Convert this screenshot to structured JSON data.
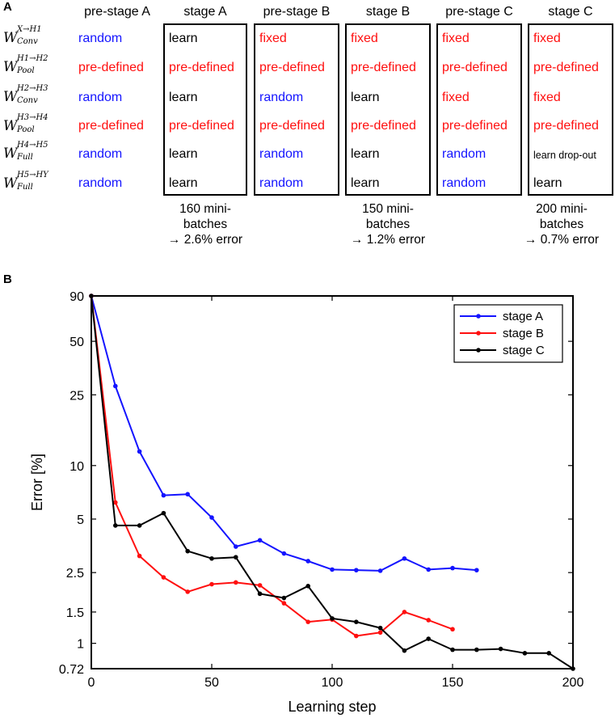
{
  "panel_a": {
    "letter": "A",
    "rows": [
      {
        "base": "W",
        "sup": "X→H1",
        "sub": "Conv"
      },
      {
        "base": "W",
        "sup": "H1→H2",
        "sub": "Pool"
      },
      {
        "base": "W",
        "sup": "H2→H3",
        "sub": "Conv"
      },
      {
        "base": "W",
        "sup": "H3→H4",
        "sub": "Pool"
      },
      {
        "base": "W",
        "sup": "H4→H5",
        "sub": "Full"
      },
      {
        "base": "W",
        "sup": "H5→HY",
        "sub": "Full"
      }
    ],
    "columns": [
      {
        "header": "pre-stage A",
        "cells": [
          "random",
          "pre-defined",
          "random",
          "pre-defined",
          "random",
          "random"
        ],
        "colors": [
          "#1414ff",
          "#ff0f0f",
          "#1414ff",
          "#ff0f0f",
          "#1414ff",
          "#1414ff"
        ]
      },
      {
        "header": "stage A",
        "cells": [
          "learn",
          "pre-defined",
          "learn",
          "pre-defined",
          "learn",
          "learn"
        ],
        "colors": [
          "#000000",
          "#ff0f0f",
          "#000000",
          "#ff0f0f",
          "#000000",
          "#000000"
        ]
      },
      {
        "header": "pre-stage B",
        "cells": [
          "fixed",
          "pre-defined",
          "random",
          "pre-defined",
          "random",
          "random"
        ],
        "colors": [
          "#ff0f0f",
          "#ff0f0f",
          "#1414ff",
          "#ff0f0f",
          "#1414ff",
          "#1414ff"
        ]
      },
      {
        "header": "stage B",
        "cells": [
          "fixed",
          "pre-defined",
          "learn",
          "pre-defined",
          "learn",
          "learn"
        ],
        "colors": [
          "#ff0f0f",
          "#ff0f0f",
          "#000000",
          "#ff0f0f",
          "#000000",
          "#000000"
        ]
      },
      {
        "header": "pre-stage C",
        "cells": [
          "fixed",
          "pre-defined",
          "fixed",
          "pre-defined",
          "random",
          "random"
        ],
        "colors": [
          "#ff0f0f",
          "#ff0f0f",
          "#ff0f0f",
          "#ff0f0f",
          "#1414ff",
          "#1414ff"
        ]
      },
      {
        "header": "stage C",
        "cells": [
          "fixed",
          "pre-defined",
          "fixed",
          "pre-defined",
          "learn drop-out",
          "learn"
        ],
        "colors": [
          "#ff0f0f",
          "#ff0f0f",
          "#ff0f0f",
          "#ff0f0f",
          "#000000",
          "#000000"
        ]
      }
    ],
    "notes": [
      {
        "line1": "160 mini-",
        "line2": "batches",
        "line3": "→ 2.6% error"
      },
      {
        "line1": "150 mini-",
        "line2": "batches",
        "line3": "→ 1.2% error"
      },
      {
        "line1": "200 mini-",
        "line2": "batches",
        "line3": "→ 0.7% error"
      }
    ]
  },
  "panel_b": {
    "letter": "B"
  },
  "chart_data": {
    "type": "line",
    "title": "",
    "xlabel": "Learning step",
    "ylabel": "Error [%]",
    "y_scale": "log",
    "xlim": [
      0,
      200
    ],
    "ylim": [
      0.72,
      90
    ],
    "x_ticks": [
      0,
      50,
      100,
      150,
      200
    ],
    "x_tick_labels": [
      "0",
      "50",
      "100",
      "150",
      "200"
    ],
    "y_ticks": [
      0.72,
      1,
      1.5,
      2.5,
      5,
      10,
      25,
      50,
      90
    ],
    "y_tick_labels": [
      "0.72",
      "1",
      "1.5",
      "2.5",
      "5",
      "10",
      "25",
      "50",
      "90"
    ],
    "legend_position": "top-right",
    "series": [
      {
        "name": "stage A",
        "color": "#1414ff",
        "x": [
          0,
          10,
          20,
          30,
          40,
          50,
          60,
          70,
          80,
          90,
          100,
          110,
          120,
          130,
          140,
          150,
          160
        ],
        "y": [
          90,
          28,
          12,
          6.8,
          6.9,
          5.1,
          3.5,
          3.8,
          3.2,
          2.9,
          2.6,
          2.58,
          2.56,
          3.0,
          2.6,
          2.65,
          2.58
        ]
      },
      {
        "name": "stage B",
        "color": "#ff0f0f",
        "x": [
          0,
          10,
          20,
          30,
          40,
          50,
          60,
          70,
          80,
          90,
          100,
          110,
          120,
          130,
          140,
          150
        ],
        "y": [
          90,
          6.2,
          3.1,
          2.35,
          1.95,
          2.15,
          2.2,
          2.12,
          1.68,
          1.32,
          1.36,
          1.1,
          1.15,
          1.5,
          1.35,
          1.2
        ]
      },
      {
        "name": "stage C",
        "color": "#000000",
        "x": [
          0,
          10,
          20,
          30,
          40,
          50,
          60,
          70,
          80,
          90,
          100,
          110,
          120,
          130,
          140,
          150,
          160,
          170,
          180,
          190,
          200
        ],
        "y": [
          90,
          4.6,
          4.6,
          5.4,
          3.3,
          3.0,
          3.05,
          1.9,
          1.8,
          2.1,
          1.38,
          1.32,
          1.22,
          0.91,
          1.06,
          0.92,
          0.92,
          0.93,
          0.88,
          0.88,
          0.72
        ]
      }
    ]
  }
}
